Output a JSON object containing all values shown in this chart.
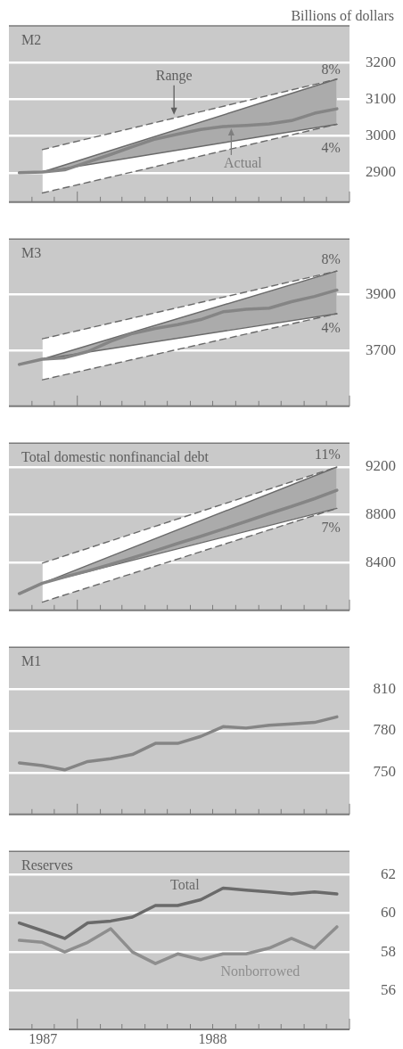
{
  "chart_data": [
    {
      "type": "line",
      "title": "M2",
      "ylabel": "Billions of dollars",
      "x": [
        "1987-10-15",
        "1987-11-15",
        "1987-12-15",
        "1988-01-15",
        "1988-02-15",
        "1988-03-15",
        "1988-04-15",
        "1988-05-15",
        "1988-06-15",
        "1988-07-15",
        "1988-08-15",
        "1988-09-15",
        "1988-10-15",
        "1988-11-15",
        "1988-12-15"
      ],
      "xlim": [
        "1987-10-01",
        "1989-01-01"
      ],
      "xticks": [
        {
          "value": "1987-11-01",
          "label": null
        },
        {
          "value": "1987-12-01",
          "label": null
        },
        {
          "value": "1988-01-01",
          "label": null
        },
        {
          "value": "1988-02-01",
          "label": null
        },
        {
          "value": "1988-03-01",
          "label": null
        },
        {
          "value": "1988-04-01",
          "label": null
        },
        {
          "value": "1988-05-01",
          "label": null
        },
        {
          "value": "1988-06-01",
          "label": null
        },
        {
          "value": "1988-07-01",
          "label": null
        },
        {
          "value": "1988-08-01",
          "label": null
        },
        {
          "value": "1988-09-01",
          "label": null
        },
        {
          "value": "1988-10-01",
          "label": null
        },
        {
          "value": "1988-11-01",
          "label": null
        },
        {
          "value": "1988-12-01",
          "label": null
        },
        {
          "value": "1989-01-01",
          "label": null
        }
      ],
      "ylim": [
        2820,
        3300
      ],
      "yticks": [
        2900,
        3000,
        3100,
        3200
      ],
      "grid": "y",
      "tick_labels": "y",
      "series": [
        {
          "type": "line",
          "x": [
            "1987-11-15",
            "1988-12-15"
          ],
          "values": [
            2963,
            3155
          ],
          "lower": [
            2845,
            3032
          ],
          "upper": [
            2963,
            3155
          ],
          "color": "#6a6a6a",
          "line_style": "dashed"
        },
        {
          "type": "line",
          "x": [
            "1987-11-15",
            "1988-12-15"
          ],
          "values": [
            2845,
            3032
          ],
          "color": "#6a6a6a",
          "line_style": "dashed"
        },
        {
          "type": "line",
          "x": [
            "1987-11-15",
            "1988-12-15"
          ],
          "values": [
            2902,
            3155
          ],
          "lower": [
            2902,
            3032
          ],
          "upper": [
            2902,
            3155
          ],
          "color": "#6a6a6a",
          "line_style": "solid"
        },
        {
          "type": "line",
          "x": [
            "1987-11-15",
            "1988-12-15"
          ],
          "values": [
            2902,
            3032
          ],
          "color": "#6a6a6a",
          "line_style": "solid"
        },
        {
          "type": "line",
          "values": [
            2900,
            2902,
            2908,
            2929,
            2950,
            2971,
            2992,
            3005,
            3018,
            3026,
            3029,
            3033,
            3042,
            3062,
            3074
          ],
          "color": "#858585",
          "line_style": "solid"
        }
      ],
      "annotations": [
        {
          "text": "Range",
          "x": "1988-05-10",
          "y": 3053
        },
        {
          "text": "Actual",
          "x": "1988-07-26",
          "y": 3026
        },
        {
          "text": "8%",
          "x": "1988-12-15",
          "y": 3155
        },
        {
          "text": "4%",
          "x": "1988-12-15",
          "y": 3032
        }
      ]
    },
    {
      "type": "line",
      "title": "M3",
      "x": [
        "1987-10-15",
        "1987-11-15",
        "1987-12-15",
        "1988-01-15",
        "1988-02-15",
        "1988-03-15",
        "1988-04-15",
        "1988-05-15",
        "1988-06-15",
        "1988-07-15",
        "1988-08-15",
        "1988-09-15",
        "1988-10-15",
        "1988-11-15",
        "1988-12-15"
      ],
      "xlim": [
        "1987-10-01",
        "1989-01-01"
      ],
      "xticks": [
        {
          "value": "1987-11-01",
          "label": null
        },
        {
          "value": "1987-12-01",
          "label": null
        },
        {
          "value": "1988-01-01",
          "label": null
        },
        {
          "value": "1988-02-01",
          "label": null
        },
        {
          "value": "1988-03-01",
          "label": null
        },
        {
          "value": "1988-04-01",
          "label": null
        },
        {
          "value": "1988-05-01",
          "label": null
        },
        {
          "value": "1988-06-01",
          "label": null
        },
        {
          "value": "1988-07-01",
          "label": null
        },
        {
          "value": "1988-08-01",
          "label": null
        },
        {
          "value": "1988-09-01",
          "label": null
        },
        {
          "value": "1988-10-01",
          "label": null
        },
        {
          "value": "1988-11-01",
          "label": null
        },
        {
          "value": "1988-12-01",
          "label": null
        },
        {
          "value": "1989-01-01",
          "label": null
        }
      ],
      "ylim": [
        3500,
        4100
      ],
      "yticks": [
        3700,
        3900
      ],
      "grid": "y",
      "tick_labels": "y",
      "series": [
        {
          "type": "line",
          "x": [
            "1987-11-15",
            "1988-12-15"
          ],
          "values": [
            3742,
            3985
          ],
          "lower": [
            3595,
            3832
          ],
          "upper": [
            3742,
            3985
          ],
          "color": "#6a6a6a",
          "line_style": "dashed"
        },
        {
          "type": "line",
          "x": [
            "1987-11-15",
            "1988-12-15"
          ],
          "values": [
            3595,
            3832
          ],
          "color": "#6a6a6a",
          "line_style": "dashed"
        },
        {
          "type": "line",
          "x": [
            "1987-11-15",
            "1988-12-15"
          ],
          "values": [
            3669,
            3985
          ],
          "lower": [
            3669,
            3832
          ],
          "upper": [
            3669,
            3985
          ],
          "color": "#6a6a6a",
          "line_style": "solid"
        },
        {
          "type": "line",
          "x": [
            "1987-11-15",
            "1988-12-15"
          ],
          "values": [
            3669,
            3832
          ],
          "color": "#6a6a6a",
          "line_style": "solid"
        },
        {
          "type": "line",
          "values": [
            3650,
            3669,
            3674,
            3696,
            3733,
            3761,
            3779,
            3793,
            3811,
            3839,
            3848,
            3852,
            3875,
            3894,
            3917
          ],
          "color": "#858585",
          "line_style": "solid"
        }
      ],
      "annotations": [
        {
          "text": "8%",
          "x": "1988-12-15",
          "y": 3985
        },
        {
          "text": "4%",
          "x": "1988-12-15",
          "y": 3832
        }
      ]
    },
    {
      "type": "line",
      "title": "Total domestic nonfinancial debt",
      "x": [
        "1987-10-15",
        "1987-11-15",
        "1987-12-15",
        "1988-01-15",
        "1988-02-15",
        "1988-03-15",
        "1988-04-15",
        "1988-05-15",
        "1988-06-15",
        "1988-07-15",
        "1988-08-15",
        "1988-09-15",
        "1988-10-15",
        "1988-11-15",
        "1988-12-15"
      ],
      "xlim": [
        "1987-10-01",
        "1989-01-01"
      ],
      "xticks": [
        {
          "value": "1987-11-01",
          "label": null
        },
        {
          "value": "1987-12-01",
          "label": null
        },
        {
          "value": "1988-01-01",
          "label": null
        },
        {
          "value": "1988-02-01",
          "label": null
        },
        {
          "value": "1988-03-01",
          "label": null
        },
        {
          "value": "1988-04-01",
          "label": null
        },
        {
          "value": "1988-05-01",
          "label": null
        },
        {
          "value": "1988-06-01",
          "label": null
        },
        {
          "value": "1988-07-01",
          "label": null
        },
        {
          "value": "1988-08-01",
          "label": null
        },
        {
          "value": "1988-09-01",
          "label": null
        },
        {
          "value": "1988-10-01",
          "label": null
        },
        {
          "value": "1988-11-01",
          "label": null
        },
        {
          "value": "1988-12-01",
          "label": null
        },
        {
          "value": "1989-01-01",
          "label": null
        }
      ],
      "ylim": [
        8000,
        9400
      ],
      "yticks": [
        8400,
        8800,
        9200
      ],
      "grid": "y",
      "tick_labels": "y",
      "series": [
        {
          "type": "line",
          "x": [
            "1987-11-15",
            "1988-12-15"
          ],
          "values": [
            8395,
            9200
          ],
          "lower": [
            8069,
            8854
          ],
          "upper": [
            8395,
            9200
          ],
          "color": "#6a6a6a",
          "line_style": "dashed"
        },
        {
          "type": "line",
          "x": [
            "1987-11-15",
            "1988-12-15"
          ],
          "values": [
            8069,
            8854
          ],
          "color": "#6a6a6a",
          "line_style": "dashed"
        },
        {
          "type": "line",
          "x": [
            "1987-11-15",
            "1988-12-15"
          ],
          "values": [
            8227,
            9200
          ],
          "lower": [
            8227,
            8854
          ],
          "upper": [
            8227,
            9200
          ],
          "color": "#6a6a6a",
          "line_style": "solid"
        },
        {
          "type": "line",
          "x": [
            "1987-11-15",
            "1988-12-15"
          ],
          "values": [
            8227,
            8854
          ],
          "color": "#6a6a6a",
          "line_style": "solid"
        },
        {
          "type": "line",
          "values": [
            8140,
            8227,
            8280,
            8330,
            8385,
            8440,
            8500,
            8560,
            8620,
            8680,
            8745,
            8810,
            8870,
            8935,
            9005
          ],
          "color": "#858585",
          "line_style": "solid"
        }
      ],
      "annotations": [
        {
          "text": "11%",
          "x": "1988-12-15",
          "y": 9200
        },
        {
          "text": "7%",
          "x": "1988-12-15",
          "y": 8854
        }
      ]
    },
    {
      "type": "line",
      "title": "M1",
      "x": [
        "1987-10-15",
        "1987-11-15",
        "1987-12-15",
        "1988-01-15",
        "1988-02-15",
        "1988-03-15",
        "1988-04-15",
        "1988-05-15",
        "1988-06-15",
        "1988-07-15",
        "1988-08-15",
        "1988-09-15",
        "1988-10-15",
        "1988-11-15",
        "1988-12-15"
      ],
      "xlim": [
        "1987-10-01",
        "1989-01-01"
      ],
      "xticks": [
        {
          "value": "1987-11-01",
          "label": null
        },
        {
          "value": "1987-12-01",
          "label": null
        },
        {
          "value": "1988-01-01",
          "label": null
        },
        {
          "value": "1988-02-01",
          "label": null
        },
        {
          "value": "1988-03-01",
          "label": null
        },
        {
          "value": "1988-04-01",
          "label": null
        },
        {
          "value": "1988-05-01",
          "label": null
        },
        {
          "value": "1988-06-01",
          "label": null
        },
        {
          "value": "1988-07-01",
          "label": null
        },
        {
          "value": "1988-08-01",
          "label": null
        },
        {
          "value": "1988-09-01",
          "label": null
        },
        {
          "value": "1988-10-01",
          "label": null
        },
        {
          "value": "1988-11-01",
          "label": null
        },
        {
          "value": "1988-12-01",
          "label": null
        },
        {
          "value": "1989-01-01",
          "label": null
        }
      ],
      "ylim": [
        720,
        840
      ],
      "yticks": [
        750,
        780,
        810
      ],
      "grid": "y",
      "tick_labels": "y",
      "series": [
        {
          "type": "line",
          "values": [
            757,
            755,
            752,
            758,
            760,
            763,
            771,
            771,
            776,
            783,
            782,
            784,
            785,
            786,
            790
          ],
          "color": "#858585",
          "line_style": "solid"
        }
      ]
    },
    {
      "type": "line",
      "title": "Reserves",
      "x": [
        "1987-10-15",
        "1987-11-15",
        "1987-12-15",
        "1988-01-15",
        "1988-02-15",
        "1988-03-15",
        "1988-04-15",
        "1988-05-15",
        "1988-06-15",
        "1988-07-15",
        "1988-08-15",
        "1988-09-15",
        "1988-10-15",
        "1988-11-15",
        "1988-12-15"
      ],
      "xlim": [
        "1987-10-01",
        "1989-01-01"
      ],
      "xticks": [
        {
          "value": "1987-11-01",
          "label": null
        },
        {
          "value": "1987-11-16",
          "label": "1987"
        },
        {
          "value": "1987-12-01",
          "label": null
        },
        {
          "value": "1988-01-01",
          "label": null
        },
        {
          "value": "1988-02-01",
          "label": null
        },
        {
          "value": "1988-03-01",
          "label": null
        },
        {
          "value": "1988-04-01",
          "label": null
        },
        {
          "value": "1988-05-01",
          "label": null
        },
        {
          "value": "1988-06-01",
          "label": null
        },
        {
          "value": "1988-07-01",
          "label": null
        },
        {
          "value": "1988-07-01",
          "label": "1988"
        },
        {
          "value": "1988-08-01",
          "label": null
        },
        {
          "value": "1988-09-01",
          "label": null
        },
        {
          "value": "1988-10-01",
          "label": null
        },
        {
          "value": "1988-11-01",
          "label": null
        },
        {
          "value": "1988-12-01",
          "label": null
        },
        {
          "value": "1989-01-01",
          "label": null
        }
      ],
      "ylim": [
        54,
        63.2
      ],
      "yticks": [
        56,
        58,
        60,
        62
      ],
      "grid": "y",
      "series": [
        {
          "name": "Total",
          "type": "line",
          "values": [
            59.5,
            59.1,
            58.7,
            59.5,
            59.6,
            59.8,
            60.4,
            60.4,
            60.7,
            61.3,
            61.2,
            61.1,
            61.0,
            61.1,
            61.0
          ],
          "color": "#6a6a6a",
          "line_style": "solid"
        },
        {
          "name": "Nonborrowed",
          "type": "line",
          "values": [
            58.6,
            58.5,
            58.0,
            58.5,
            59.2,
            58.0,
            57.4,
            57.9,
            57.6,
            57.9,
            57.9,
            58.2,
            58.7,
            58.2,
            59.3
          ],
          "color": "#8e8e8e",
          "line_style": "solid"
        }
      ]
    }
  ]
}
